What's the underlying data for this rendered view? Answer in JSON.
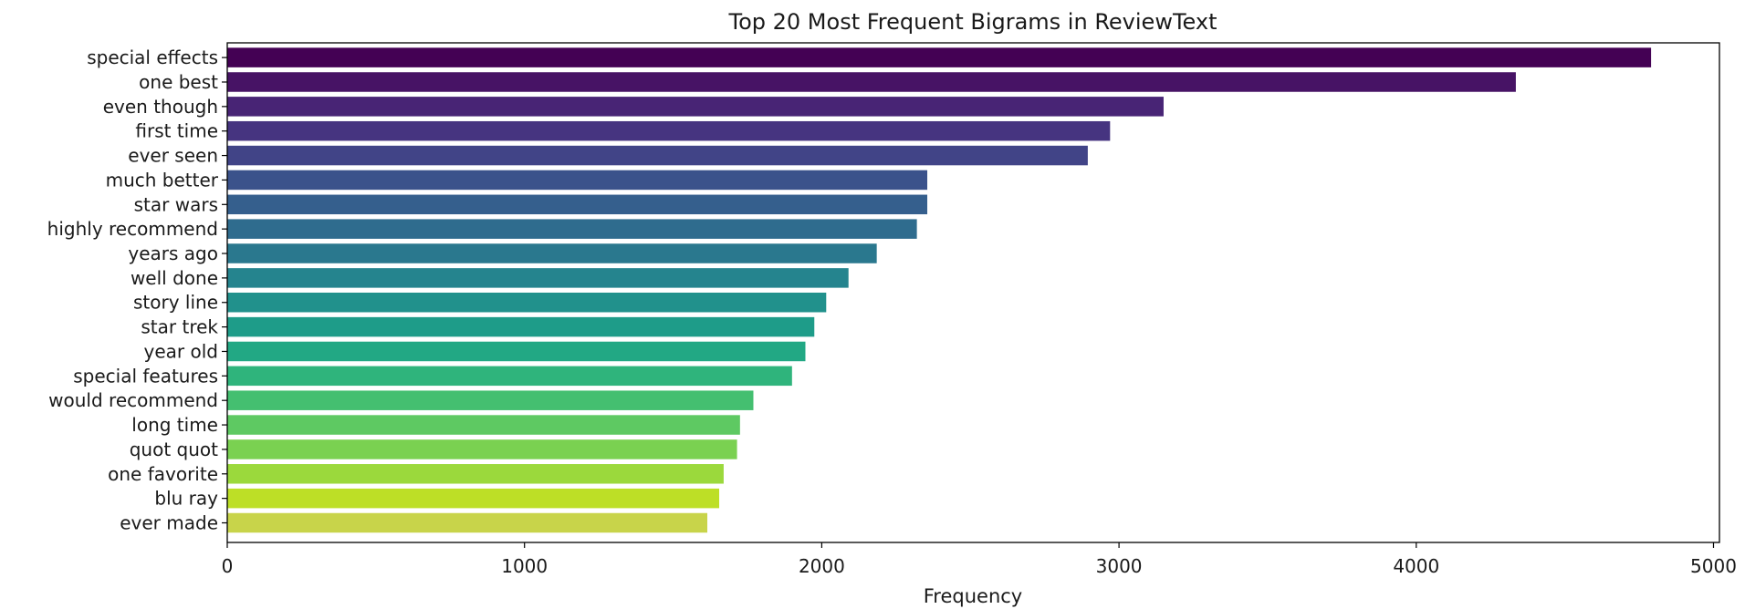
{
  "chart_data": {
    "type": "bar",
    "orientation": "horizontal",
    "title": "Top 20 Most Frequent Bigrams in ReviewText",
    "xlabel": "Frequency",
    "ylabel": "",
    "xlim": [
      0,
      5020
    ],
    "xticks": [
      0,
      1000,
      2000,
      3000,
      4000,
      5000
    ],
    "xtick_labels": [
      "0",
      "1000",
      "2000",
      "3000",
      "4000",
      "5000"
    ],
    "grid": false,
    "palette": "viridis",
    "categories": [
      "special effects",
      "one best",
      "even though",
      "first time",
      "ever seen",
      "much better",
      "star wars",
      "highly recommend",
      "years ago",
      "well done",
      "story line",
      "star trek",
      "year old",
      "special features",
      "would recommend",
      "long time",
      "quot quot",
      "one favorite",
      "blu ray",
      "ever made"
    ],
    "values": [
      4790,
      4335,
      3150,
      2970,
      2895,
      2355,
      2355,
      2320,
      2185,
      2090,
      2015,
      1975,
      1945,
      1900,
      1770,
      1725,
      1715,
      1670,
      1655,
      1615
    ],
    "colors": [
      "#440154",
      "#481a6c",
      "#472f7d",
      "#414487",
      "#39568c",
      "#31688e",
      "#2a788e",
      "#23888e",
      "#1f988b",
      "#22a884",
      "#35b779",
      "#54c568",
      "#7ad151",
      "#a5db36",
      "#d2e21b",
      "#fde725",
      "#e5e419",
      "#c8e020",
      "#addc30",
      "#90d743"
    ]
  }
}
